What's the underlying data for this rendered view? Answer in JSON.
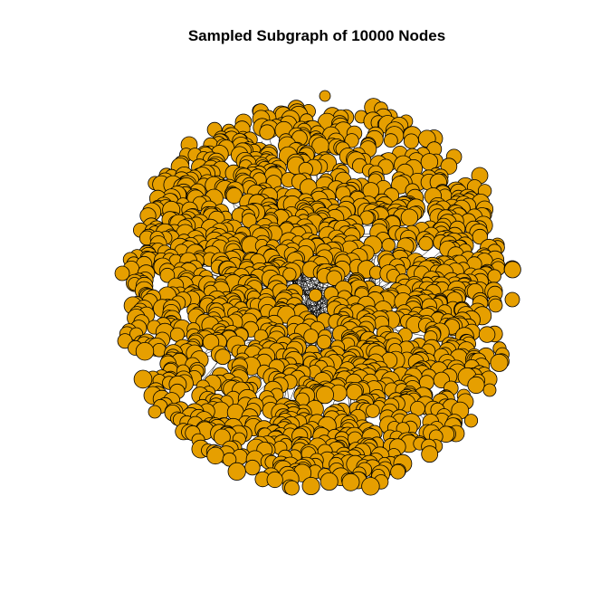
{
  "plot": {
    "title": "Sampled Subgraph of 10000 Nodes"
  },
  "graph": {
    "node_fill": "#E69F00",
    "node_stroke": "#000000",
    "edge_color": "#000000",
    "node_count_stated": 10000,
    "layout": "dense circular cloud with small hollow near center",
    "seed": 10000
  }
}
